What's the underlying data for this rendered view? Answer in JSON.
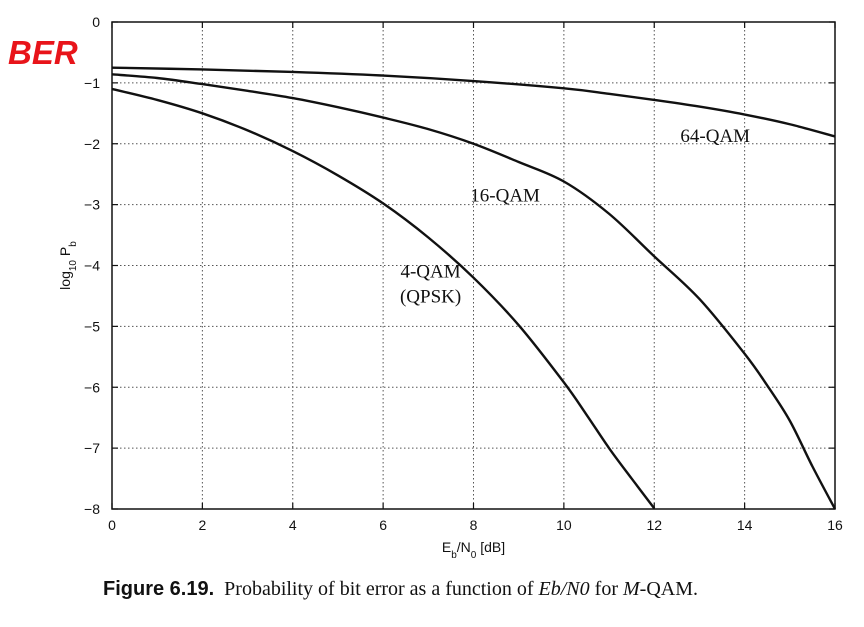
{
  "annotation": {
    "label": "BER"
  },
  "caption": {
    "figure_label": "Figure 6.19.",
    "text_before": "Probability of bit error as a function of ",
    "math": "Eb/N0",
    "text_middle": " for ",
    "m_italic": "M",
    "text_after": "-QAM."
  },
  "chart_data": {
    "type": "line",
    "xlabel": "Eb/N0 [dB]",
    "ylabel": "log10 Pb",
    "xlim": [
      0,
      16
    ],
    "ylim": [
      -8,
      0
    ],
    "xticks": [
      0,
      2,
      4,
      6,
      8,
      10,
      12,
      14,
      16
    ],
    "yticks": [
      0,
      -1,
      -2,
      -3,
      -4,
      -5,
      -6,
      -7,
      -8
    ],
    "grid": true,
    "series": [
      {
        "name": "4-QAM (QPSK)",
        "x": [
          0,
          1,
          2,
          3,
          4,
          5,
          6,
          7,
          8,
          9,
          10,
          10.5,
          11,
          11.5,
          12
        ],
        "y": [
          -1.1,
          -1.28,
          -1.5,
          -1.78,
          -2.12,
          -2.52,
          -2.98,
          -3.54,
          -4.2,
          -4.98,
          -5.92,
          -6.45,
          -7.0,
          -7.5,
          -7.99
        ]
      },
      {
        "name": "16-QAM",
        "x": [
          0,
          1,
          2,
          3,
          4,
          5,
          6,
          7,
          8,
          9,
          10,
          11,
          12,
          13,
          14,
          14.5,
          15,
          15.5,
          16
        ],
        "y": [
          -0.86,
          -0.92,
          -1.02,
          -1.13,
          -1.25,
          -1.4,
          -1.57,
          -1.76,
          -2.0,
          -2.3,
          -2.62,
          -3.15,
          -3.85,
          -4.55,
          -5.45,
          -5.97,
          -6.55,
          -7.3,
          -8.0
        ]
      },
      {
        "name": "64-QAM",
        "x": [
          0,
          2,
          4,
          6,
          8,
          10,
          11,
          12,
          13,
          14,
          15,
          16
        ],
        "y": [
          -0.75,
          -0.78,
          -0.82,
          -0.88,
          -0.97,
          -1.09,
          -1.18,
          -1.28,
          -1.39,
          -1.52,
          -1.68,
          -1.88
        ]
      }
    ],
    "annotations": [
      {
        "lines": [
          "64-QAM"
        ],
        "x": 13.35,
        "y": -1.97
      },
      {
        "lines": [
          "16-QAM"
        ],
        "x": 8.7,
        "y": -2.95
      },
      {
        "lines": [
          "4-QAM",
          "(QPSK)"
        ],
        "x": 7.05,
        "y": -4.2
      }
    ]
  }
}
